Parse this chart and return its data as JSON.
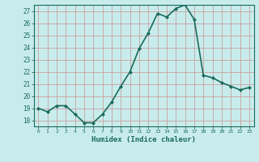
{
  "x": [
    0,
    1,
    2,
    3,
    4,
    5,
    6,
    7,
    8,
    9,
    10,
    11,
    12,
    13,
    14,
    15,
    16,
    17,
    18,
    19,
    20,
    21,
    22,
    23
  ],
  "y": [
    19.0,
    18.7,
    19.2,
    19.2,
    18.5,
    17.8,
    17.8,
    18.5,
    19.5,
    20.8,
    22.0,
    23.9,
    25.2,
    26.8,
    26.5,
    27.2,
    27.5,
    26.3,
    21.7,
    21.5,
    21.1,
    20.8,
    20.5,
    20.7
  ],
  "xlabel": "Humidex (Indice chaleur)",
  "ylim": [
    17.5,
    27.5
  ],
  "xlim": [
    -0.5,
    23.5
  ],
  "yticks": [
    18,
    19,
    20,
    21,
    22,
    23,
    24,
    25,
    26,
    27
  ],
  "xticks": [
    0,
    1,
    2,
    3,
    4,
    5,
    6,
    7,
    8,
    9,
    10,
    11,
    12,
    13,
    14,
    15,
    16,
    17,
    18,
    19,
    20,
    21,
    22,
    23
  ],
  "line_color": "#1a6b5a",
  "marker": "D",
  "marker_size": 2.0,
  "bg_color": "#c8ecec",
  "grid_color": "#c8a0a0",
  "axis_color": "#1a6b5a",
  "xlabel_color": "#1a6b5a",
  "tick_label_color": "#1a6b5a",
  "linewidth": 1.2
}
